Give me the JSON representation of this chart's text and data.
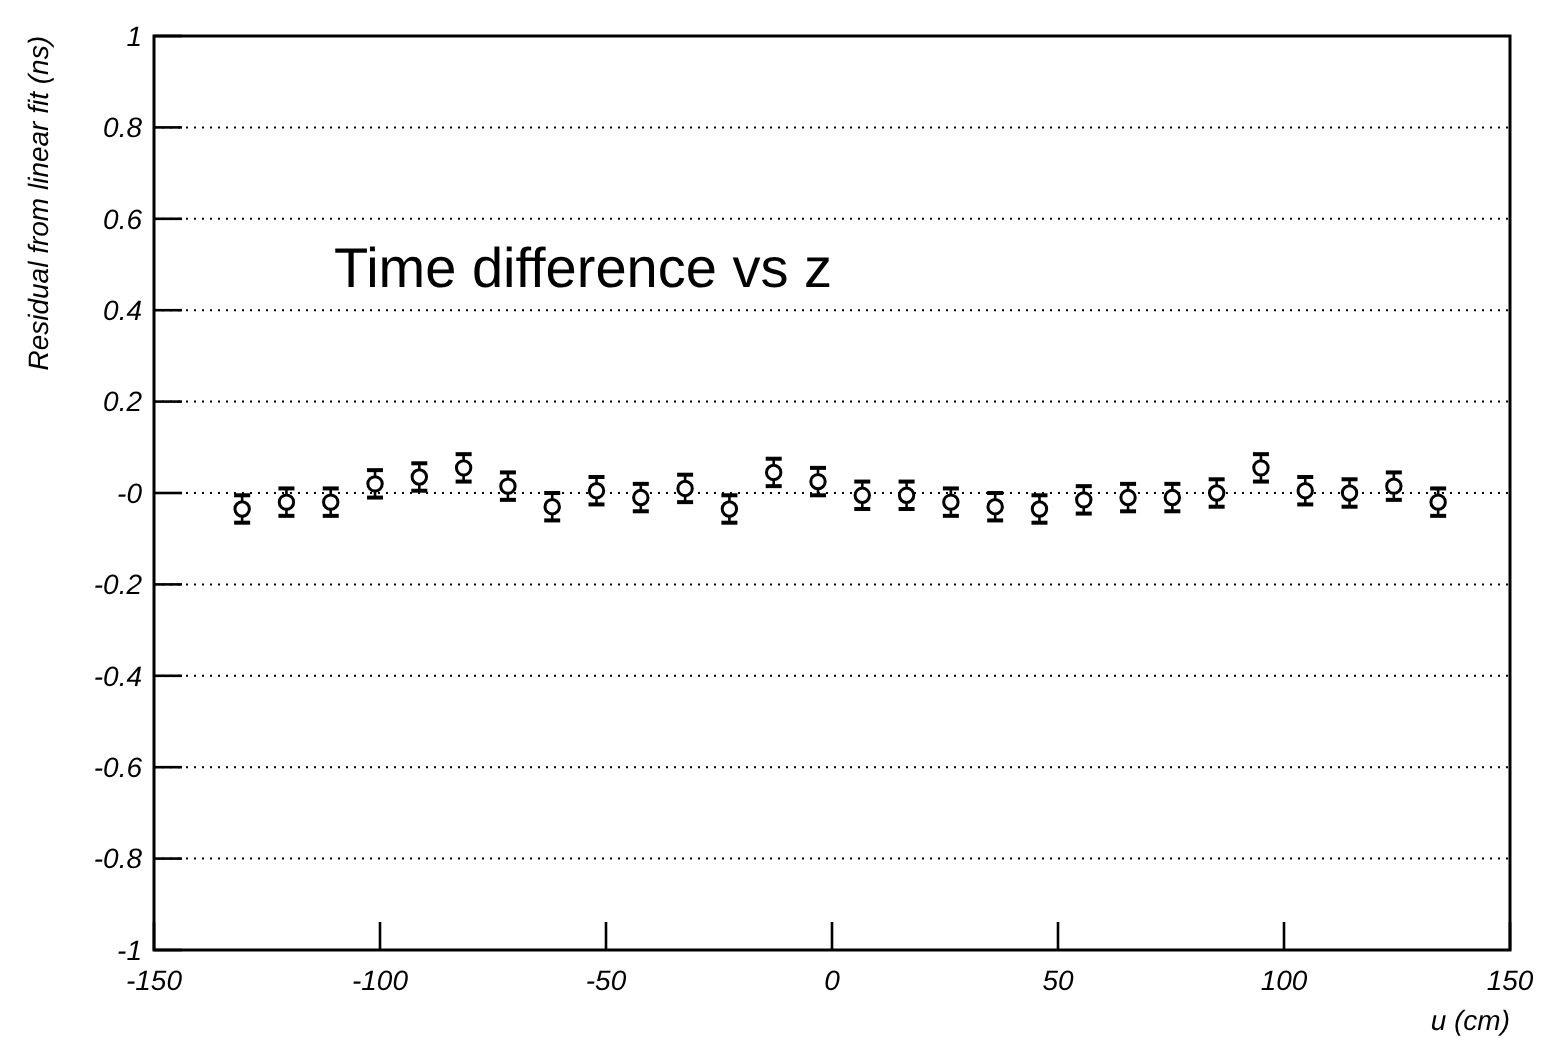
{
  "chart_data": {
    "type": "scatter",
    "title": "Time difference vs z",
    "xlabel": "u (cm)",
    "ylabel": "Residual from linear fit (ns)",
    "x": [
      -130.5,
      -120.7,
      -110.9,
      -101.1,
      -91.3,
      -81.5,
      -71.7,
      -61.9,
      -52.1,
      -42.3,
      -32.5,
      -22.7,
      -12.9,
      -3.1,
      6.7,
      16.5,
      26.3,
      36.1,
      45.9,
      55.7,
      65.5,
      75.3,
      85.1,
      94.9,
      104.7,
      114.5,
      124.3,
      134.1
    ],
    "values": [
      -0.035,
      -0.02,
      -0.02,
      0.02,
      0.035,
      0.055,
      0.015,
      -0.03,
      0.005,
      -0.01,
      0.01,
      -0.035,
      0.045,
      0.025,
      -0.005,
      -0.005,
      -0.02,
      -0.03,
      -0.035,
      -0.015,
      -0.01,
      -0.01,
      0.0,
      0.055,
      0.005,
      0.0,
      0.015,
      -0.02
    ],
    "errors": [
      0.03,
      0.03,
      0.03,
      0.03,
      0.03,
      0.03,
      0.03,
      0.03,
      0.03,
      0.03,
      0.03,
      0.03,
      0.03,
      0.03,
      0.03,
      0.03,
      0.03,
      0.03,
      0.03,
      0.03,
      0.03,
      0.03,
      0.03,
      0.03,
      0.03,
      0.03,
      0.03,
      0.03
    ],
    "color": "#000000",
    "marker": "circle",
    "grid": "y",
    "xlim": [
      -150,
      150
    ],
    "xticks": [
      -150,
      -100,
      -50,
      0,
      50,
      100,
      150
    ],
    "ylim": [
      -1,
      1
    ],
    "yticks": [
      -1,
      -0.8,
      -0.6,
      -0.4,
      -0.2,
      {
        "value": 0,
        "label": "-0"
      },
      0.2,
      0.4,
      0.6,
      0.8,
      1
    ]
  }
}
